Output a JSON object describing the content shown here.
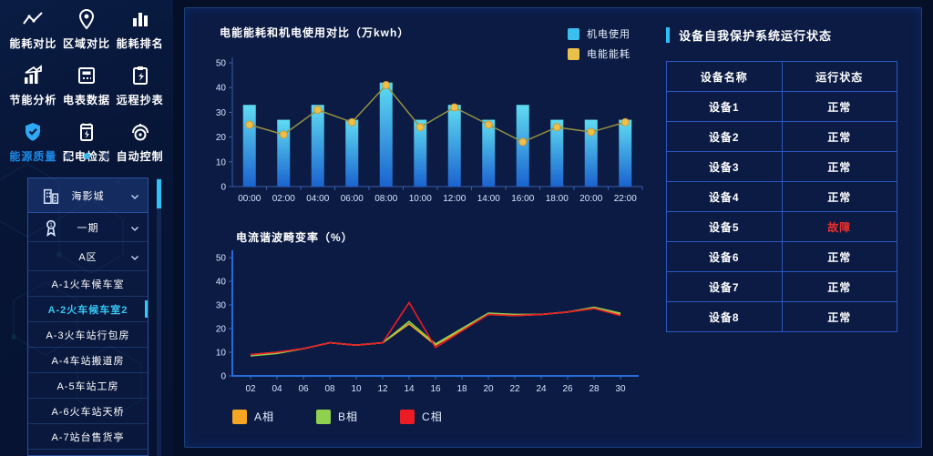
{
  "sidebar": {
    "modules": [
      {
        "label": "能耗对比",
        "icon": "trend-icon",
        "active": false
      },
      {
        "label": "区域对比",
        "icon": "location-icon",
        "active": false
      },
      {
        "label": "能耗排名",
        "icon": "ranking-icon",
        "active": false
      },
      {
        "label": "节能分析",
        "icon": "analysis-icon",
        "active": false
      },
      {
        "label": "电表数据",
        "icon": "meter-icon",
        "active": false
      },
      {
        "label": "远程抄表",
        "icon": "clipboard-icon",
        "active": false
      },
      {
        "label": "能源质量",
        "icon": "shield-icon",
        "active": true
      },
      {
        "label": "配电检测",
        "icon": "battery-icon",
        "active": false
      },
      {
        "label": "自动控制",
        "icon": "robot-icon",
        "active": false
      }
    ],
    "pagination": {
      "dots": 3,
      "active_index": 1
    },
    "tree": [
      {
        "label": "海影城",
        "icon": "building-icon",
        "chevron": true,
        "level": "root",
        "selected": false
      },
      {
        "label": "一期",
        "icon": "medal-icon",
        "chevron": true,
        "level": "lvl1",
        "selected": false
      },
      {
        "label": "A区",
        "icon": null,
        "chevron": true,
        "level": "lvl2",
        "selected": false
      },
      {
        "label": "A-1火车候车室",
        "icon": null,
        "chevron": false,
        "level": "leaf",
        "selected": false
      },
      {
        "label": "A-2火车候车室2",
        "icon": null,
        "chevron": false,
        "level": "leaf",
        "selected": true
      },
      {
        "label": "A-3火车站行包房",
        "icon": null,
        "chevron": false,
        "level": "leaf",
        "selected": false
      },
      {
        "label": "A-4车站搬道房",
        "icon": null,
        "chevron": false,
        "level": "leaf",
        "selected": false
      },
      {
        "label": "A-5车站工房",
        "icon": null,
        "chevron": false,
        "level": "leaf",
        "selected": false
      },
      {
        "label": "A-6火车站天桥",
        "icon": null,
        "chevron": false,
        "level": "leaf",
        "selected": false
      },
      {
        "label": "A-7站台售货亭",
        "icon": null,
        "chevron": false,
        "level": "leaf",
        "selected": false
      }
    ]
  },
  "chart_data": [
    {
      "type": "bar",
      "title": "电能能耗和机电使用对比（万kwh）",
      "categories": [
        "00:00",
        "02:00",
        "04:00",
        "06:00",
        "08:00",
        "10:00",
        "12:00",
        "14:00",
        "16:00",
        "18:00",
        "20:00",
        "22:00"
      ],
      "series": [
        {
          "name": "机电使用",
          "type": "bar",
          "color": "#3bbfee",
          "color_top": "#5fdcf2",
          "color_bottom": "#1b63cf",
          "values": [
            33,
            27,
            33,
            27,
            42,
            27,
            33,
            27,
            33,
            27,
            27,
            27
          ]
        },
        {
          "name": "电能能耗",
          "type": "line",
          "color": "#96913f",
          "marker_color": "#f0bf4a",
          "values": [
            25,
            21,
            31,
            26,
            41,
            24,
            32,
            25,
            18,
            24,
            22,
            26
          ]
        }
      ],
      "ylim": [
        0,
        50
      ],
      "yticks": [
        0,
        10,
        20,
        30,
        40,
        50
      ],
      "grid": false,
      "legend_position": "top-right"
    },
    {
      "type": "line",
      "title": "电流谐波畸变率（%）",
      "categories": [
        "02",
        "04",
        "06",
        "08",
        "10",
        "12",
        "14",
        "16",
        "18",
        "20",
        "22",
        "24",
        "26",
        "28",
        "30"
      ],
      "series": [
        {
          "name": "A相",
          "color": "#f5a623",
          "values": [
            9,
            10,
            11.5,
            14,
            13,
            14,
            22,
            13,
            19.5,
            26,
            25.5,
            26,
            27,
            28.5,
            26
          ]
        },
        {
          "name": "B相",
          "color": "#8fd14f",
          "values": [
            8.5,
            9.5,
            11.5,
            14,
            13,
            14,
            23,
            13.5,
            20,
            26.5,
            26,
            26,
            27,
            29,
            26.5
          ]
        },
        {
          "name": "C相",
          "color": "#ed1c24",
          "values": [
            9,
            10,
            11.5,
            14,
            13,
            14,
            31,
            12,
            19,
            26,
            25.5,
            26,
            27,
            28.5,
            25.5
          ]
        }
      ],
      "ylim": [
        0,
        50
      ],
      "yticks": [
        0,
        10,
        20,
        30,
        40,
        50
      ],
      "grid": false,
      "legend_position": "bottom"
    }
  ],
  "device_panel": {
    "title": "设备自我保护系统运行状态",
    "table": {
      "headers": [
        "设备名称",
        "运行状态"
      ],
      "rows": [
        {
          "name": "设备1",
          "status": "正常",
          "fault": false
        },
        {
          "name": "设备2",
          "status": "正常",
          "fault": false
        },
        {
          "name": "设备3",
          "status": "正常",
          "fault": false
        },
        {
          "name": "设备4",
          "status": "正常",
          "fault": false
        },
        {
          "name": "设备5",
          "status": "故障",
          "fault": true
        },
        {
          "name": "设备6",
          "status": "正常",
          "fault": false
        },
        {
          "name": "设备7",
          "status": "正常",
          "fault": false
        },
        {
          "name": "设备8",
          "status": "正常",
          "fault": false
        }
      ]
    }
  },
  "colors": {
    "accent_cyan": "#35c8f5",
    "active_module_blue": "#1e88e5",
    "bar_top": "#5fdcf2",
    "bar_bottom": "#1b63cf",
    "energy_line": "#96913f",
    "energy_marker": "#f0bf4a",
    "legend_mech": "#3bbfee",
    "legend_energy": "#e8c04a",
    "phase_a": "#f5a623",
    "phase_b": "#8fd14f",
    "phase_c": "#ed1c24",
    "fault_red": "#e8312f",
    "table_border": "#2b57c0",
    "panel_bg": "#0b1b44",
    "panel_border": "#1d3e7e"
  }
}
